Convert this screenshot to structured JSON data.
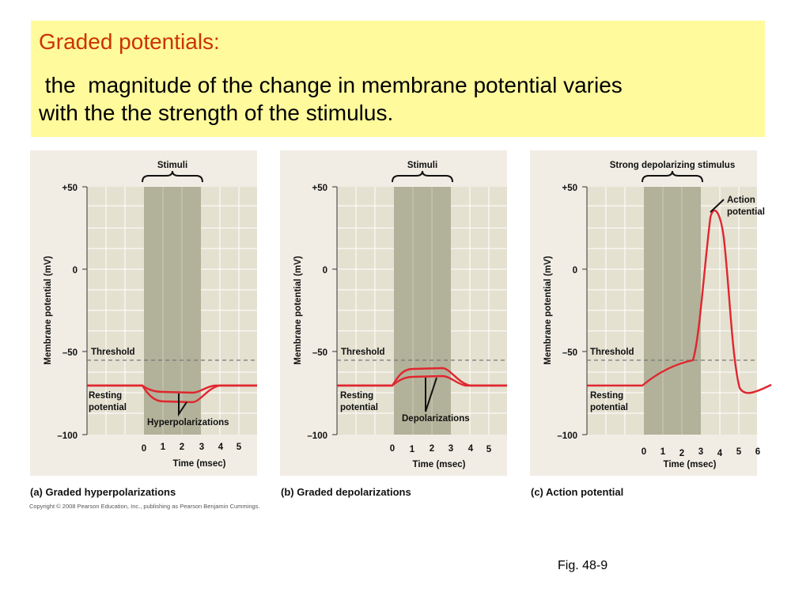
{
  "slide": {
    "heading": "Graded potentials:",
    "body_line1": " the  magnitude of the change in membrane potential varies",
    "body_line2": "with the the strength of the stimulus.",
    "copyright": "Copyright © 2008 Pearson Education, Inc., publishing as Pearson Benjamin Cummings.",
    "fig_label": "Fig. 48-9"
  },
  "colors": {
    "title_bg": "#fffa9c",
    "heading": "#cc3300",
    "panel_bg": "#f1ede4",
    "plot_bg": "#e4e1d1",
    "stimulus_band": "#b2b29a",
    "trace": "#e0262e",
    "threshold": "#777777"
  },
  "common": {
    "ylabel": "Membrane potential (mV)",
    "xlabel": "Time (msec)",
    "threshold_label": "Threshold",
    "resting_label_line1": "Resting",
    "resting_label_line2": "potential",
    "y_ticks": [
      "+50",
      "0",
      "–50",
      "–100"
    ]
  },
  "panels": [
    {
      "caption": "(a) Graded hyperpolarizations",
      "stimulus_label": "Stimuli",
      "x_ticks": [
        "0",
        "1",
        "2",
        "3",
        "4",
        "5"
      ],
      "annotation": "Hyperpolarizations"
    },
    {
      "caption": "(b) Graded depolarizations",
      "stimulus_label": "Stimuli",
      "x_ticks": [
        "0",
        "1",
        "2",
        "3",
        "4",
        "5"
      ],
      "annotation": "Depolarizations"
    },
    {
      "caption": "(c) Action potential",
      "stimulus_label": "Strong depolarizing stimulus",
      "x_ticks": [
        "0",
        "1",
        "2",
        "3",
        "4",
        "5",
        "6"
      ],
      "annotation_line1": "Action",
      "annotation_line2": "potential"
    }
  ]
}
